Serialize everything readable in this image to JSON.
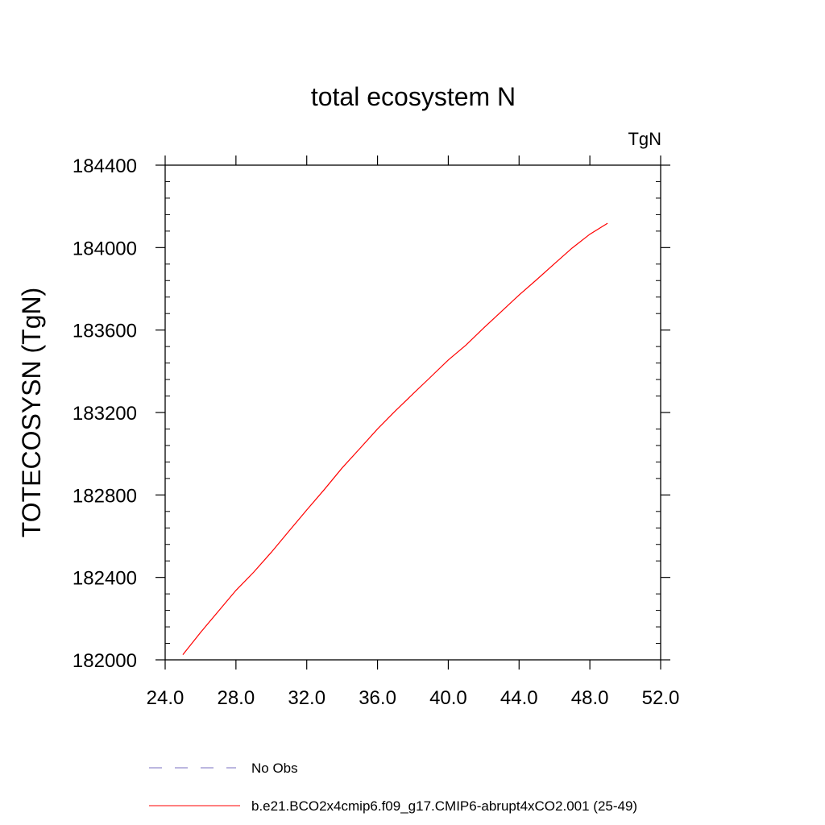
{
  "chart_data": {
    "type": "line",
    "title": "total ecosystem N",
    "units_label": "TgN",
    "ylabel": "TOTECOSYSN  (TgN)",
    "xlabel": "",
    "xlim": [
      24,
      52
    ],
    "ylim": [
      182000,
      184400
    ],
    "x_ticks": [
      "24.0",
      "28.0",
      "32.0",
      "36.0",
      "40.0",
      "44.0",
      "48.0",
      "52.0"
    ],
    "y_ticks": [
      "182000",
      "182400",
      "182800",
      "183200",
      "183600",
      "184000",
      "184400"
    ],
    "grid": false,
    "legend_placement": "bottom",
    "series": [
      {
        "name": "b.e21.BCO2x4cmip6.f09_g17.CMIP6-abrupt4xCO2.001 (25-49)",
        "color": "#ff0000",
        "style": "solid",
        "x": [
          25,
          26,
          27,
          28,
          29,
          30,
          31,
          32,
          33,
          34,
          35,
          36,
          37,
          38,
          39,
          40,
          41,
          42,
          43,
          44,
          45,
          46,
          47,
          48,
          49
        ],
        "y": [
          182025,
          182133,
          182235,
          182337,
          182425,
          182522,
          182625,
          182727,
          182827,
          182931,
          183025,
          183120,
          183207,
          183290,
          183372,
          183455,
          183527,
          183610,
          183690,
          183770,
          183845,
          183922,
          183998,
          184065,
          184118
        ]
      },
      {
        "name": "No Obs",
        "color": "#7a6fc0",
        "style": "dashed",
        "x": [],
        "y": []
      }
    ]
  }
}
